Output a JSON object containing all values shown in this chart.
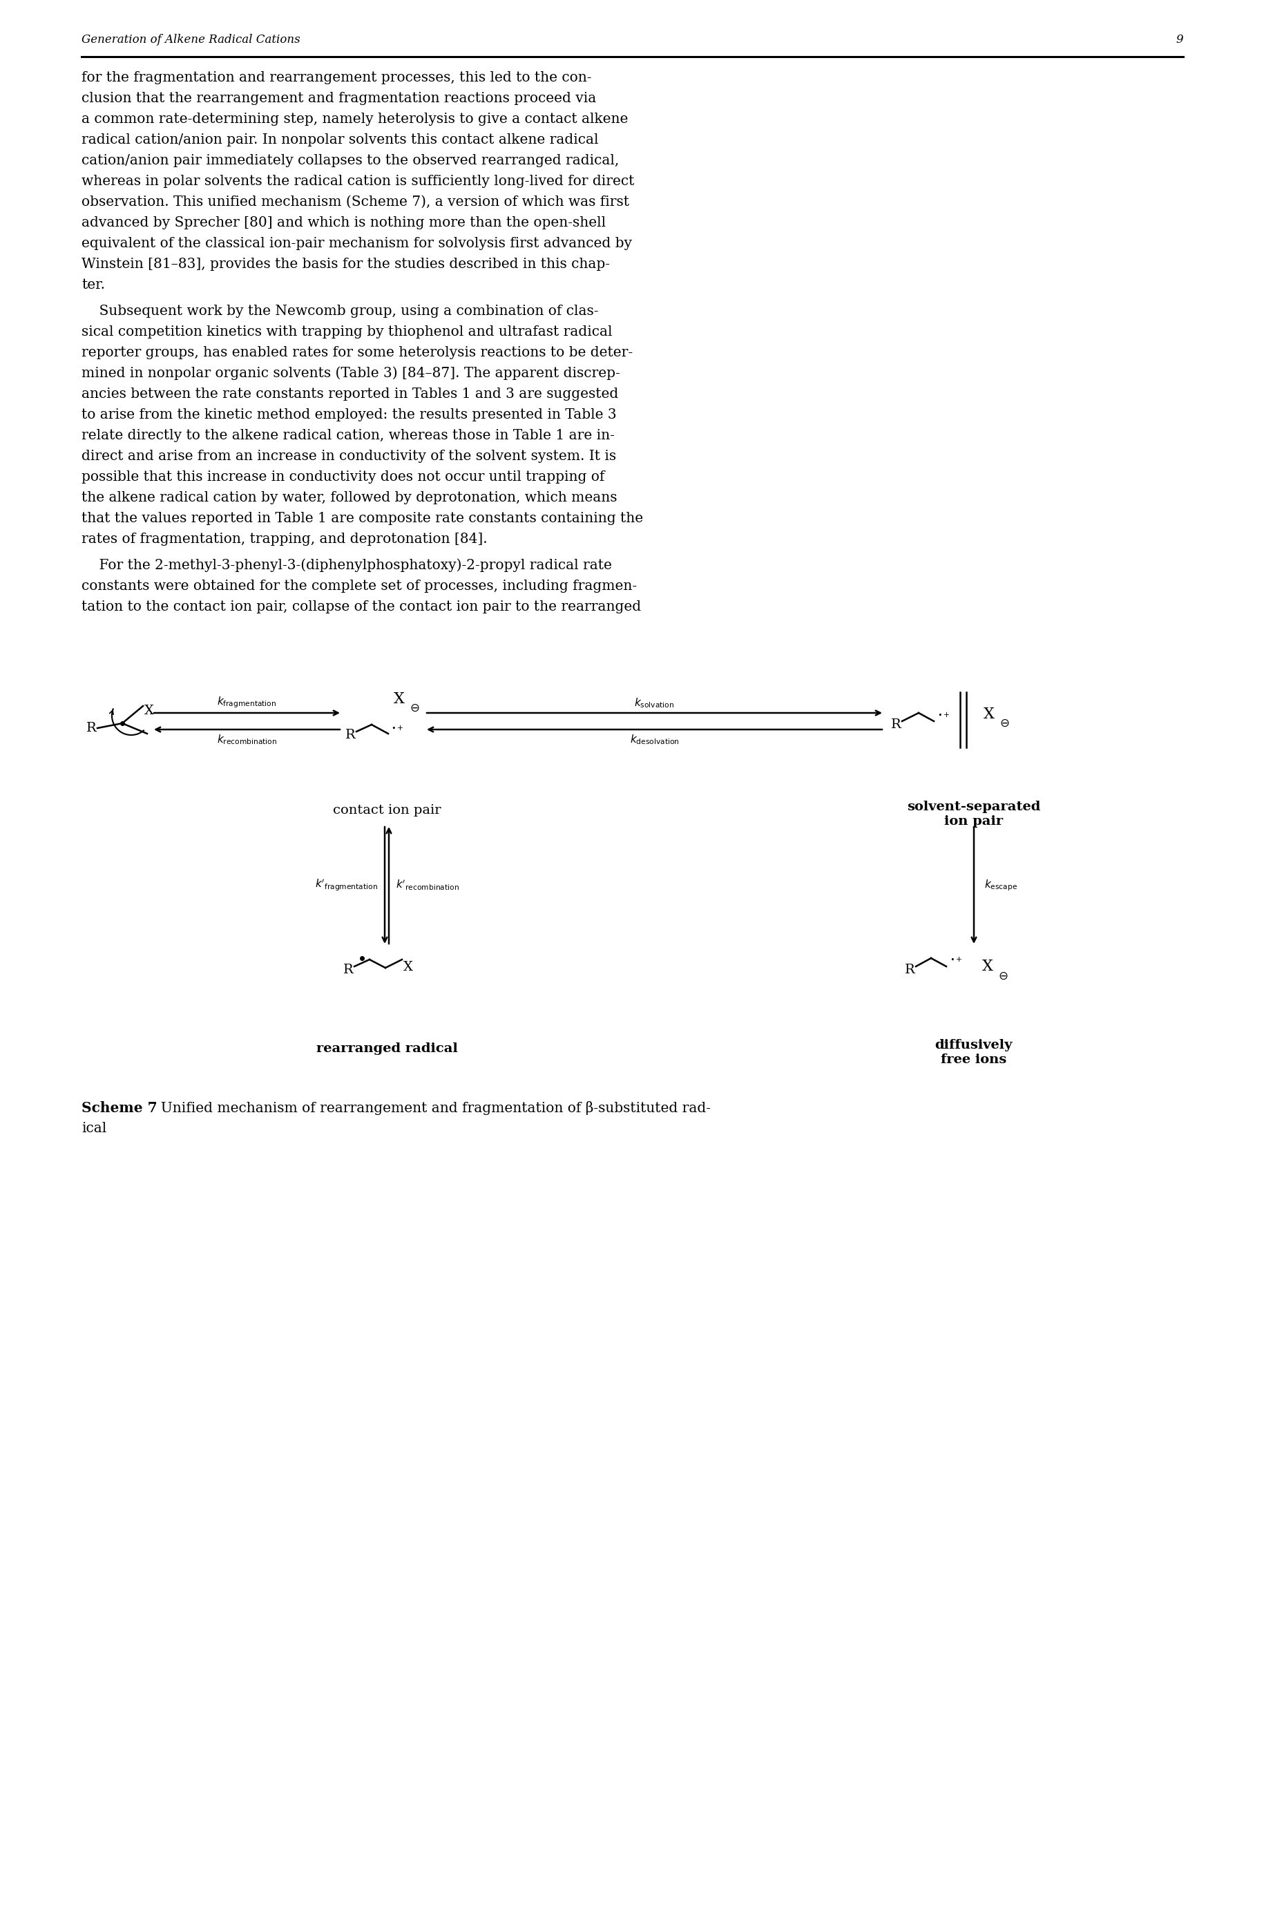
{
  "header_text": "Generation of Alkene Radical Cations",
  "page_number": "9",
  "paragraph1_lines": [
    "for the fragmentation and rearrangement processes, this led to the con-",
    "clusion that the rearrangement and fragmentation reactions proceed via",
    "a common rate-determining step, namely heterolysis to give a contact alkene",
    "radical cation/anion pair. In nonpolar solvents this contact alkene radical",
    "cation/anion pair immediately collapses to the observed rearranged radical,",
    "whereas in polar solvents the radical cation is sufficiently long-lived for direct",
    "observation. This unified mechanism (Scheme 7), a version of which was first",
    "advanced by Sprecher [80] and which is nothing more than the open-shell",
    "equivalent of the classical ion-pair mechanism for solvolysis first advanced by",
    "Winstein [81–83], provides the basis for the studies described in this chap-",
    "ter."
  ],
  "paragraph2_lines": [
    "    Subsequent work by the Newcomb group, using a combination of clas-",
    "sical competition kinetics with trapping by thiophenol and ultrafast radical",
    "reporter groups, has enabled rates for some heterolysis reactions to be deter-",
    "mined in nonpolar organic solvents (Table 3) [84–87]. The apparent discrep-",
    "ancies between the rate constants reported in Tables 1 and 3 are suggested",
    "to arise from the kinetic method employed: the results presented in Table 3",
    "relate directly to the alkene radical cation, whereas those in Table 1 are in-",
    "direct and arise from an increase in conductivity of the solvent system. It is",
    "possible that this increase in conductivity does not occur until trapping of",
    "the alkene radical cation by water, followed by deprotonation, which means",
    "that the values reported in Table 1 are composite rate constants containing the",
    "rates of fragmentation, trapping, and deprotonation [84]."
  ],
  "paragraph3_lines": [
    "    For the 2-methyl-3-phenyl-3-(diphenylphosphatoxy)-2-propyl radical rate",
    "constants were obtained for the complete set of processes, including fragmen-",
    "tation to the contact ion pair, collapse of the contact ion pair to the rearranged"
  ],
  "background_color": "#ffffff",
  "text_color": "#000000"
}
